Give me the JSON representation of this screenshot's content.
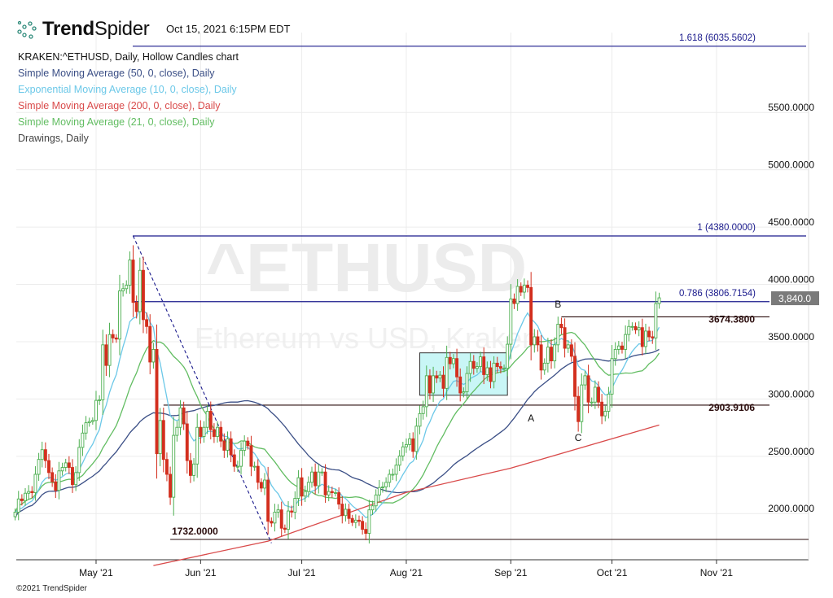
{
  "header": {
    "brand_bold": "Trend",
    "brand_light": "Spider",
    "timestamp": "Oct 15, 2021 6:15PM EDT"
  },
  "legend": {
    "symbol_line": "KRAKEN:^ETHUSD, Daily, Hollow Candles chart",
    "items": [
      {
        "label": "Simple Moving Average (50, 0, close), Daily",
        "color": "#3b4f86"
      },
      {
        "label": "Exponential Moving Average (10, 0, close), Daily",
        "color": "#6cc8e8"
      },
      {
        "label": "Simple Moving Average (200, 0, close), Daily",
        "color": "#d94a4a"
      },
      {
        "label": "Simple Moving Average (21, 0, close), Daily",
        "color": "#62bd62"
      },
      {
        "label": "Drawings, Daily",
        "color": "#444444"
      }
    ]
  },
  "watermark": {
    "symbol": "^ETHUSD",
    "name": "Ethereum vs USD, Kraken"
  },
  "footer": {
    "copyright": "©2021 TrendSpider"
  },
  "chart_data": {
    "type": "candlestick",
    "symbol": "KRAKEN:^ETHUSD",
    "interval": "Daily",
    "start_date": "2021-04-07",
    "x_ticks": [
      {
        "label": "May '21",
        "date": "2021-05-01"
      },
      {
        "label": "Jun '21",
        "date": "2021-06-01"
      },
      {
        "label": "Jul '21",
        "date": "2021-07-01"
      },
      {
        "label": "Aug '21",
        "date": "2021-08-01"
      },
      {
        "label": "Sep '21",
        "date": "2021-09-01"
      },
      {
        "label": "Oct '21",
        "date": "2021-10-01"
      },
      {
        "label": "Nov '21",
        "date": "2021-11-01"
      }
    ],
    "y_ticks": [
      "2000.0000",
      "2500.0000",
      "3000.0000",
      "3500.0000",
      "4000.0000",
      "4500.0000",
      "5000.0000",
      "5500.0000"
    ],
    "y_tick_values": [
      2000,
      2500,
      3000,
      3500,
      4000,
      4500,
      5000,
      5500
    ],
    "last_price": "3,840.0",
    "last_price_value": 3840,
    "closes": [
      1970,
      2085,
      2070,
      2135,
      2150,
      2140,
      2300,
      2430,
      2515,
      2420,
      2315,
      2235,
      2160,
      2330,
      2360,
      2400,
      2360,
      2210,
      2315,
      2535,
      2660,
      2750,
      2760,
      2770,
      2945,
      2950,
      3430,
      3250,
      3520,
      3490,
      3480,
      3900,
      3920,
      3950,
      4170,
      3800,
      3720,
      4080,
      3650,
      3590,
      3280,
      3390,
      2480,
      2770,
      2430,
      2300,
      2100,
      2640,
      2710,
      2880,
      2740,
      2420,
      2290,
      2390,
      2710,
      2630,
      2710,
      2850,
      2690,
      2630,
      2710,
      2590,
      2510,
      2610,
      2470,
      2370,
      2370,
      2510,
      2590,
      2550,
      2370,
      2370,
      2230,
      2180,
      2250,
      1890,
      1875,
      1970,
      1990,
      1830,
      1820,
      1980,
      1970,
      2090,
      2270,
      2110,
      2150,
      2230,
      2320,
      2200,
      2320,
      2320,
      2120,
      2150,
      2140,
      2140,
      2040,
      1940,
      1995,
      1915,
      1880,
      1900,
      1890,
      1820,
      1785,
      1990,
      2025,
      2120,
      2185,
      2190,
      2230,
      2300,
      2300,
      2380,
      2460,
      2540,
      2560,
      2610,
      2500,
      2720,
      2830,
      2890,
      3160,
      3010,
      3160,
      3140,
      3165,
      3050,
      3320,
      3265,
      3310,
      3150,
      3010,
      3020,
      3180,
      3285,
      3225,
      3240,
      3325,
      3170,
      3230,
      3110,
      3270,
      3240,
      3225,
      3225,
      3435,
      3830,
      3790,
      3940,
      3890,
      3950,
      3930,
      3430,
      3500,
      3430,
      3210,
      3270,
      3410,
      3290,
      3430,
      3610,
      3580,
      3400,
      3430,
      3330,
      2980,
      2760,
      3080,
      3160,
      2930,
      2930,
      3060,
      2930,
      2810,
      2850,
      3000,
      3310,
      3390,
      3420,
      3390,
      3520,
      3590,
      3590,
      3560,
      3580,
      3415,
      3550,
      3500,
      3490,
      3790,
      3840
    ],
    "sma200_points": [
      {
        "date": "2021-05-18",
        "value": 1504
      },
      {
        "date": "2021-06-21",
        "value": 1717
      },
      {
        "date": "2021-08-01",
        "value": 2142
      },
      {
        "date": "2021-09-01",
        "value": 2354
      },
      {
        "date": "2021-10-15",
        "value": 2730
      }
    ],
    "drawings": {
      "fib_levels": [
        {
          "label": "1.618 (6035.5602)",
          "value": 6035.5602
        },
        {
          "label": "1 (4380.0000)",
          "value": 4380.0
        },
        {
          "label": "0.786 (3806.7154)",
          "value": 3806.7154
        }
      ],
      "levels": [
        {
          "label": "3674.3800",
          "value": 3674.38,
          "from": "2021-09-16"
        },
        {
          "label": "2903.9106",
          "value": 2903.9106,
          "from": "2021-05-21"
        },
        {
          "label": "1732.0000",
          "value": 1732.0,
          "from": "2021-05-23"
        }
      ],
      "trendline": {
        "from": {
          "date": "2021-05-12",
          "value": 4380
        },
        "to": {
          "date": "2021-06-22",
          "value": 1700
        }
      },
      "range_box": {
        "from": "2021-08-05",
        "to": "2021-08-31",
        "low": 2990,
        "high": 3360,
        "color": "#c9f6f6"
      },
      "points": [
        {
          "label": "A",
          "date": "2021-09-07",
          "value": 2890
        },
        {
          "label": "B",
          "date": "2021-09-15",
          "value": 3720
        },
        {
          "label": "C",
          "date": "2021-09-21",
          "value": 2720
        }
      ]
    },
    "colors": {
      "up": "#4caf50",
      "down": "#d32f1e",
      "fib": "#1a1a8c",
      "level": "#2a0c0c"
    },
    "grid": true
  }
}
